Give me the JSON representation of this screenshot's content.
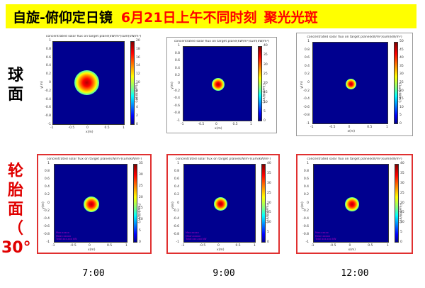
{
  "header": {
    "title_main": "自旋-俯仰定日镜",
    "title_date": "6月21日上午不同时刻",
    "title_tail": "聚光光斑",
    "bg_color": "#ffff00",
    "accent_color": "#ff0000"
  },
  "rows": [
    {
      "label_lines": [
        "球",
        "面"
      ],
      "color": "#000000"
    },
    {
      "label_lines": [
        "轮",
        "胎",
        "面",
        "（",
        "30°"
      ],
      "color": "#e00000"
    }
  ],
  "panel_title": "concentrated solar flux on target plane(kW/m²)sum(kW/m²)",
  "axis": {
    "xlabel": "x(m)",
    "ylabel": "y(m)",
    "colorbar_label": "Flux(kW/m²)",
    "xticks": [
      "-1",
      "-0.5",
      "0",
      "0.5",
      "1"
    ],
    "yticks": [
      "1",
      "0.8",
      "0.6",
      "0.4",
      "0.2",
      "0",
      "-0.2",
      "-0.4",
      "-0.6",
      "-0.8",
      "-1"
    ]
  },
  "panels": [
    {
      "row": 0,
      "col": 0,
      "spot_size": 0.34,
      "cbar_ticks": [
        "20",
        "18",
        "16",
        "14",
        "12",
        "10",
        "8",
        "6",
        "4",
        "2",
        "0"
      ]
    },
    {
      "row": 0,
      "col": 1,
      "spot_size": 0.18,
      "cbar_ticks": [
        "40",
        "35",
        "30",
        "25",
        "20",
        "15",
        "10",
        "5",
        "0"
      ]
    },
    {
      "row": 0,
      "col": 2,
      "spot_size": 0.14,
      "cbar_ticks": [
        "50",
        "45",
        "40",
        "35",
        "30",
        "25",
        "20",
        "15",
        "10",
        "5",
        "0"
      ]
    },
    {
      "row": 1,
      "col": 0,
      "spot_size": 0.21,
      "cbar_ticks": [
        "35",
        "30",
        "25",
        "20",
        "15",
        "10",
        "5",
        "0"
      ]
    },
    {
      "row": 1,
      "col": 1,
      "spot_size": 0.19,
      "cbar_ticks": [
        "40",
        "35",
        "30",
        "25",
        "20",
        "15",
        "10",
        "5",
        "0"
      ]
    },
    {
      "row": 1,
      "col": 2,
      "spot_size": 0.19,
      "cbar_ticks": [
        "40",
        "35",
        "30",
        "25",
        "20",
        "15",
        "10",
        "5",
        "0"
      ]
    }
  ],
  "legend_lines": [
    "Max:xxxxx",
    "Mean:xxxxx",
    "Total:xxx.xxx kW"
  ],
  "times": [
    "7:00",
    "9:00",
    "12:00"
  ]
}
